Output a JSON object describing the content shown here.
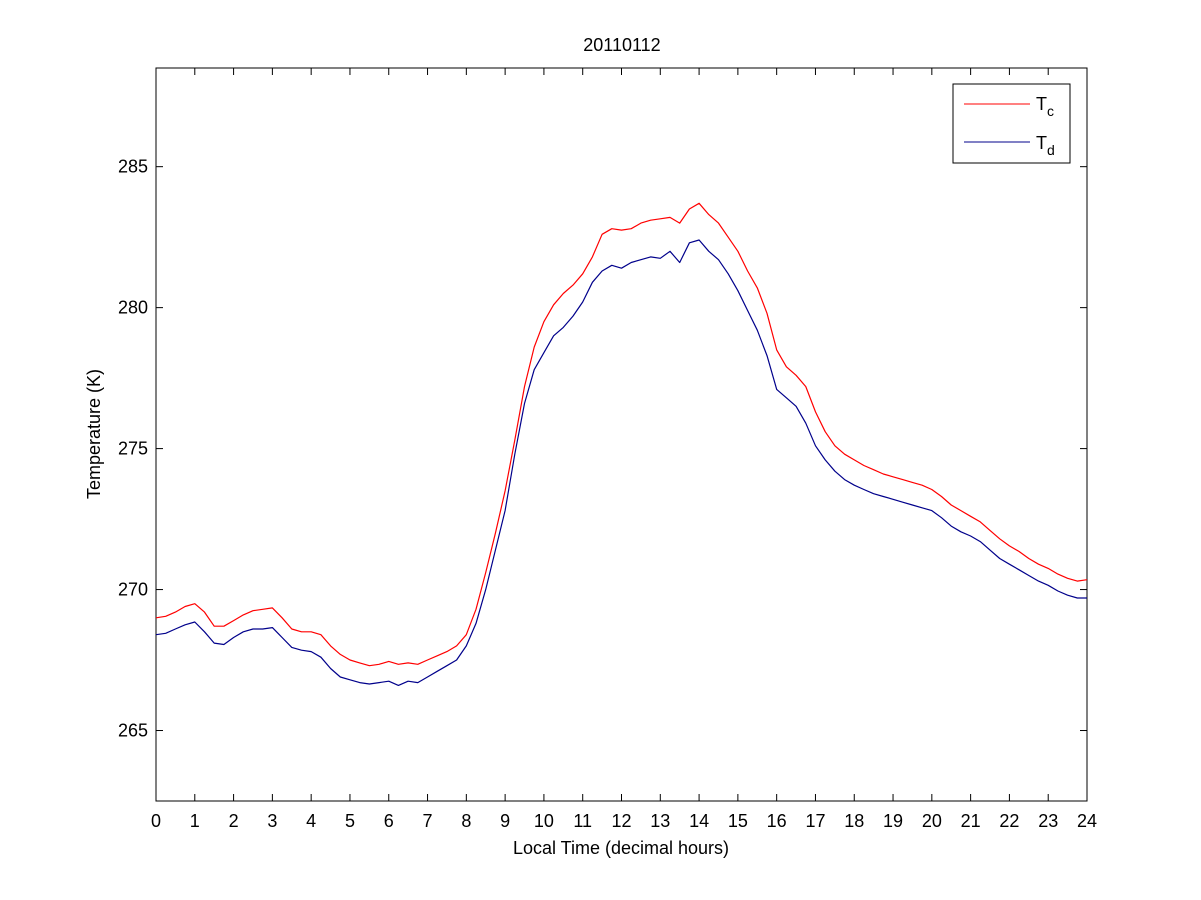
{
  "chart_data": {
    "type": "line",
    "title": "20110112",
    "xlabel": "Local Time (decimal hours)",
    "ylabel": "Temperature (K)",
    "xlim": [
      0,
      24
    ],
    "ylim": [
      262.5,
      288.5
    ],
    "xticks": [
      "0",
      "1",
      "2",
      "3",
      "4",
      "5",
      "6",
      "7",
      "8",
      "9",
      "10",
      "11",
      "12",
      "13",
      "14",
      "15",
      "16",
      "17",
      "18",
      "19",
      "20",
      "21",
      "22",
      "23",
      "24"
    ],
    "yticks": [
      "265",
      "270",
      "275",
      "280",
      "285"
    ],
    "grid": false,
    "legend_position": "top-right",
    "legend": [
      {
        "base": "T",
        "sub": "c",
        "color": "#ff0000"
      },
      {
        "base": "T",
        "sub": "d",
        "color": "#00008b"
      }
    ],
    "series": [
      {
        "name": "Tc",
        "color": "#ff0000",
        "x": [
          0,
          0.25,
          0.5,
          0.75,
          1.0,
          1.25,
          1.5,
          1.75,
          2.0,
          2.25,
          2.5,
          2.75,
          3.0,
          3.25,
          3.5,
          3.75,
          4.0,
          4.25,
          4.5,
          4.75,
          5.0,
          5.25,
          5.5,
          5.75,
          6.0,
          6.25,
          6.5,
          6.75,
          7.0,
          7.25,
          7.5,
          7.75,
          8.0,
          8.25,
          8.5,
          8.75,
          9.0,
          9.25,
          9.5,
          9.75,
          10.0,
          10.25,
          10.5,
          10.75,
          11.0,
          11.25,
          11.5,
          11.75,
          12.0,
          12.25,
          12.5,
          12.75,
          13.0,
          13.25,
          13.5,
          13.75,
          14.0,
          14.25,
          14.5,
          14.75,
          15.0,
          15.25,
          15.5,
          15.75,
          16.0,
          16.25,
          16.5,
          16.75,
          17.0,
          17.25,
          17.5,
          17.75,
          18.0,
          18.25,
          18.5,
          18.75,
          19.0,
          19.25,
          19.5,
          19.75,
          20.0,
          20.25,
          20.5,
          20.75,
          21.0,
          21.25,
          21.5,
          21.75,
          22.0,
          22.25,
          22.5,
          22.75,
          23.0,
          23.25,
          23.5,
          23.75,
          24.0
        ],
        "y": [
          269.0,
          269.05,
          269.2,
          269.4,
          269.5,
          269.2,
          268.7,
          268.7,
          268.9,
          269.1,
          269.25,
          269.3,
          269.35,
          269.0,
          268.6,
          268.5,
          268.5,
          268.4,
          268.0,
          267.7,
          267.5,
          267.4,
          267.3,
          267.35,
          267.45,
          267.35,
          267.4,
          267.35,
          267.5,
          267.65,
          267.8,
          268.0,
          268.4,
          269.3,
          270.6,
          272.0,
          273.5,
          275.3,
          277.2,
          278.6,
          279.5,
          280.1,
          280.5,
          280.8,
          281.2,
          281.8,
          282.6,
          282.8,
          282.75,
          282.8,
          283.0,
          283.1,
          283.15,
          283.2,
          283.0,
          283.5,
          283.7,
          283.3,
          283.0,
          282.5,
          282.0,
          281.3,
          280.7,
          279.8,
          278.5,
          277.9,
          277.6,
          277.2,
          276.3,
          275.6,
          275.1,
          274.8,
          274.6,
          274.4,
          274.25,
          274.1,
          274.0,
          273.9,
          273.8,
          273.7,
          273.55,
          273.3,
          273.0,
          272.8,
          272.6,
          272.4,
          272.1,
          271.8,
          271.55,
          271.35,
          271.1,
          270.9,
          270.75,
          270.55,
          270.4,
          270.3,
          270.35
        ]
      },
      {
        "name": "Td",
        "color": "#00008b",
        "x": [
          0,
          0.25,
          0.5,
          0.75,
          1.0,
          1.25,
          1.5,
          1.75,
          2.0,
          2.25,
          2.5,
          2.75,
          3.0,
          3.25,
          3.5,
          3.75,
          4.0,
          4.25,
          4.5,
          4.75,
          5.0,
          5.25,
          5.5,
          5.75,
          6.0,
          6.25,
          6.5,
          6.75,
          7.0,
          7.25,
          7.5,
          7.75,
          8.0,
          8.25,
          8.5,
          8.75,
          9.0,
          9.25,
          9.5,
          9.75,
          10.0,
          10.25,
          10.5,
          10.75,
          11.0,
          11.25,
          11.5,
          11.75,
          12.0,
          12.25,
          12.5,
          12.75,
          13.0,
          13.25,
          13.5,
          13.75,
          14.0,
          14.25,
          14.5,
          14.75,
          15.0,
          15.25,
          15.5,
          15.75,
          16.0,
          16.25,
          16.5,
          16.75,
          17.0,
          17.25,
          17.5,
          17.75,
          18.0,
          18.25,
          18.5,
          18.75,
          19.0,
          19.25,
          19.5,
          19.75,
          20.0,
          20.25,
          20.5,
          20.75,
          21.0,
          21.25,
          21.5,
          21.75,
          22.0,
          22.25,
          22.5,
          22.75,
          23.0,
          23.25,
          23.5,
          23.75,
          24.0
        ],
        "y": [
          268.4,
          268.45,
          268.6,
          268.75,
          268.85,
          268.5,
          268.1,
          268.05,
          268.3,
          268.5,
          268.6,
          268.6,
          268.65,
          268.3,
          267.95,
          267.85,
          267.8,
          267.6,
          267.2,
          266.9,
          266.8,
          266.7,
          266.65,
          266.7,
          266.75,
          266.6,
          266.75,
          266.7,
          266.9,
          267.1,
          267.3,
          267.5,
          268.0,
          268.8,
          270.0,
          271.4,
          272.8,
          274.8,
          276.6,
          277.8,
          278.4,
          279.0,
          279.3,
          279.7,
          280.2,
          280.9,
          281.3,
          281.5,
          281.4,
          281.6,
          281.7,
          281.8,
          281.75,
          282.0,
          281.6,
          282.3,
          282.4,
          282.0,
          281.7,
          281.2,
          280.6,
          279.9,
          279.2,
          278.3,
          277.1,
          276.8,
          276.5,
          275.9,
          275.1,
          274.6,
          274.2,
          273.9,
          273.7,
          273.55,
          273.4,
          273.3,
          273.2,
          273.1,
          273.0,
          272.9,
          272.8,
          272.55,
          272.25,
          272.05,
          271.9,
          271.7,
          271.4,
          271.1,
          270.9,
          270.7,
          270.5,
          270.3,
          270.15,
          269.95,
          269.8,
          269.7,
          269.7
        ]
      }
    ]
  }
}
